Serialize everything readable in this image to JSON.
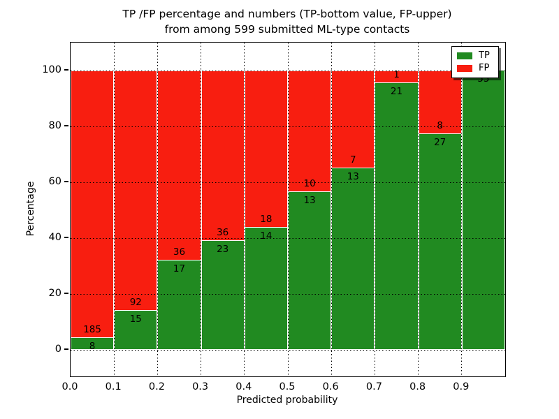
{
  "chart_data": {
    "type": "bar",
    "stacked": true,
    "normalized": "percent",
    "title": "TP /FP percentage and numbers (TP-bottom value, FP-upper)",
    "subtitle": "from among 599 submitted ML-type contacts",
    "xlabel": "Predicted probability",
    "ylabel": "Percentage",
    "bin_edges": [
      0.0,
      0.1,
      0.2,
      0.3,
      0.4,
      0.5,
      0.6,
      0.7,
      0.8,
      0.9,
      1.0
    ],
    "series": [
      {
        "name": "TP",
        "color": "#218a21",
        "counts": [
          8,
          15,
          17,
          23,
          14,
          13,
          13,
          21,
          27,
          55
        ]
      },
      {
        "name": "FP",
        "color": "#f81e10",
        "counts": [
          185,
          92,
          36,
          36,
          18,
          10,
          7,
          1,
          8,
          0
        ]
      }
    ],
    "tp_percent_heights": [
      4.15,
      14.02,
      32.08,
      38.98,
      43.75,
      56.52,
      65.0,
      95.45,
      77.14,
      100.0
    ],
    "xticks": [
      "0.0",
      "0.1",
      "0.2",
      "0.3",
      "0.4",
      "0.5",
      "0.6",
      "0.7",
      "0.8",
      "0.9"
    ],
    "yticks": [
      0,
      20,
      40,
      60,
      80,
      100
    ],
    "xlim": [
      0.0,
      1.0
    ],
    "ylim": [
      -10,
      110
    ],
    "grid": "dotted, drawn above bars",
    "legend": {
      "position": "upper right",
      "entries": [
        "TP",
        "FP"
      ]
    }
  }
}
